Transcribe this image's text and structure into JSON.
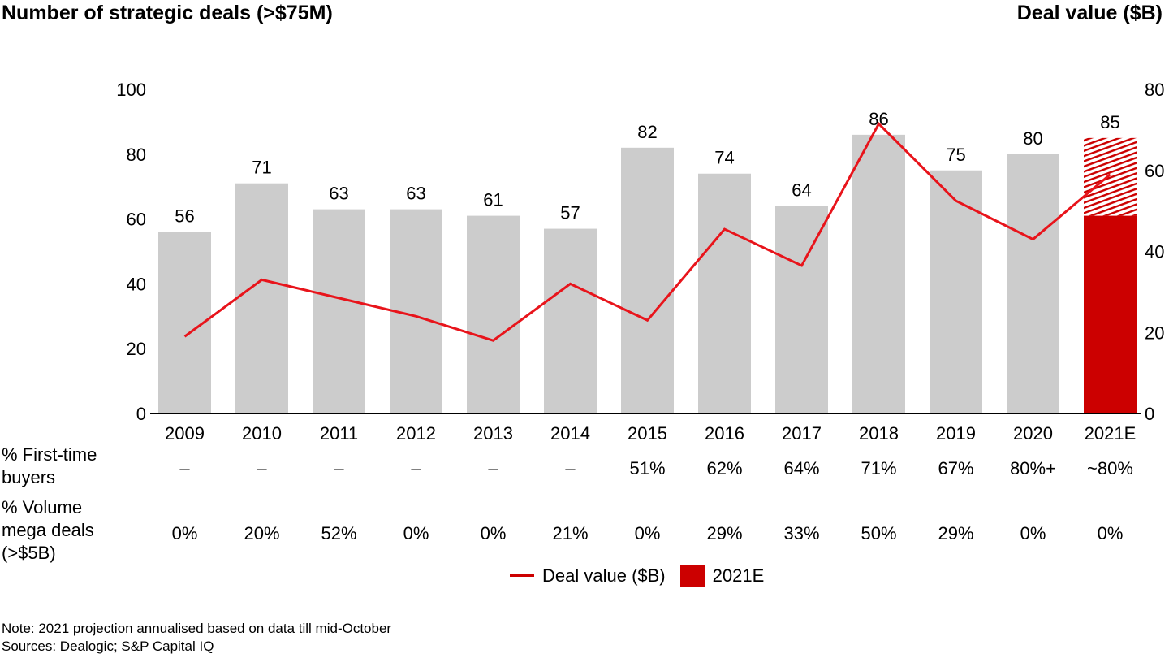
{
  "header": {
    "left_title": "Number of strategic deals (>$75M)",
    "right_title": "Deal value ($B)"
  },
  "rows": {
    "first_time_label": "% First-time buyers",
    "mega_label": "% Volume mega deals (>$5B)",
    "first_time": [
      "–",
      "–",
      "–",
      "–",
      "–",
      "–",
      "51%",
      "62%",
      "64%",
      "71%",
      "67%",
      "80%+",
      "~80%"
    ],
    "mega": [
      "0%",
      "20%",
      "52%",
      "0%",
      "0%",
      "21%",
      "0%",
      "29%",
      "33%",
      "50%",
      "29%",
      "0%",
      "0%"
    ]
  },
  "legend": {
    "line_label": "Deal value ($B)",
    "box_label": "2021E"
  },
  "notes": {
    "note": "Note: 2021 projection annualised based on data till mid-October",
    "sources": "Sources: Dealogic; S&P Capital IQ"
  },
  "chart_data": {
    "type": "bar",
    "categories": [
      "2009",
      "2010",
      "2011",
      "2012",
      "2013",
      "2014",
      "2015",
      "2016",
      "2017",
      "2018",
      "2019",
      "2020",
      "2021E"
    ],
    "series": [
      {
        "name": "",
        "axis": "left",
        "values": [
          56,
          71,
          63,
          63,
          61,
          57,
          82,
          74,
          64,
          86,
          75,
          80,
          85
        ],
        "data_labels": [
          "56",
          "71",
          "63",
          "63",
          "61",
          "57",
          "82",
          "74",
          "64",
          "86",
          "75",
          "80",
          "85"
        ],
        "color": "#cccccc",
        "last_bar_split": {
          "solid_value": 61,
          "solid_color": "#cc0000",
          "hatched_top": true
        }
      },
      {
        "name": "Deal value ($B)",
        "axis": "right",
        "type": "line",
        "values": [
          19,
          33,
          28.5,
          24,
          18,
          32,
          23,
          45.5,
          36.5,
          71.5,
          52.5,
          43,
          59
        ],
        "color": "#e8141b"
      }
    ],
    "y_left": {
      "ylim": [
        0,
        100
      ],
      "ticks": [
        0,
        20,
        40,
        60,
        80,
        100
      ]
    },
    "y_right": {
      "ylim": [
        0,
        80
      ],
      "ticks": [
        0,
        20,
        40,
        60,
        80
      ]
    },
    "grid": false,
    "legend_position": "bottom"
  }
}
